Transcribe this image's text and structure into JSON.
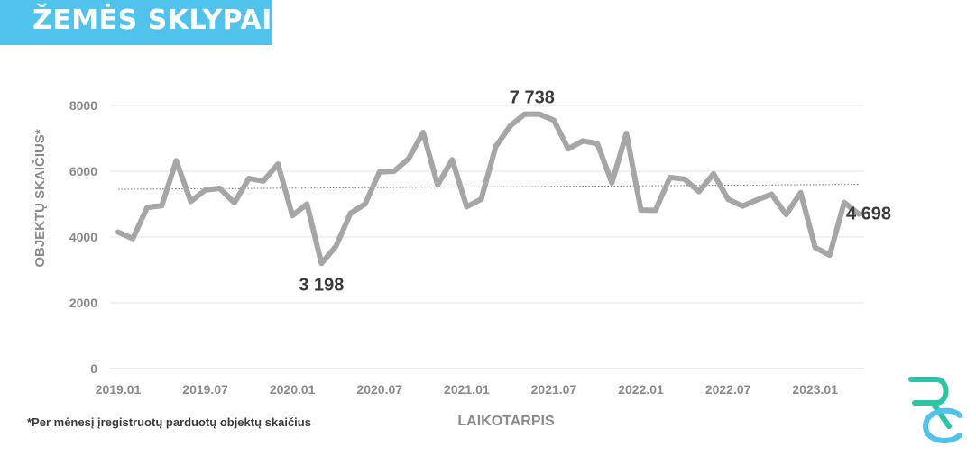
{
  "header": {
    "title": "ŽEMĖS SKLYPAI"
  },
  "footnote": "*Per mėnesį įregistruotų parduotų objektų skaičius",
  "logo": {
    "icon": "rc-logo-icon",
    "color_primary": "#2ec4a6",
    "color_secondary": "#4fc3ec"
  },
  "chart_data": {
    "type": "line",
    "ylabel": "OBJEKTŲ SKAIČIUS*",
    "xlabel": "LAIKOTARPIS",
    "ylim": [
      0,
      8000
    ],
    "yticks": [
      "0",
      "2000",
      "4000",
      "6000",
      "8000"
    ],
    "xticks": [
      "2019.01",
      "2019.07",
      "2020.01",
      "2020.07",
      "2021.01",
      "2021.07",
      "2022.01",
      "2022.07",
      "2023.01"
    ],
    "grid": true,
    "line_color": "#a6a6a6",
    "trend_color": "#777777",
    "series": [
      {
        "values": [
          4150,
          3950,
          4900,
          4950,
          6320,
          5080,
          5430,
          5480,
          5040,
          5780,
          5700,
          6220,
          4650,
          5000,
          3198,
          3720,
          4720,
          5000,
          5980,
          6000,
          6380,
          7180,
          5580,
          6350,
          4920,
          5150,
          6750,
          7380,
          7738,
          7738,
          7550,
          6680,
          6920,
          6840,
          5650,
          7150,
          4820,
          4810,
          5810,
          5760,
          5380,
          5920,
          5150,
          4940,
          5130,
          5300,
          4680,
          5350,
          3680,
          3450,
          5050,
          4698
        ]
      }
    ],
    "trend": [
      5450,
      5600
    ],
    "annotations": [
      {
        "index": 14,
        "label": "3 198"
      },
      {
        "index": 29,
        "label": "7 738"
      },
      {
        "index": 51,
        "label": "4 698"
      }
    ]
  }
}
